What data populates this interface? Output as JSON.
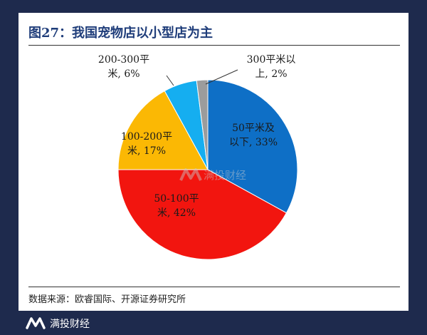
{
  "figure": {
    "title": "图27：我国宠物店以小型店为主",
    "source": "数据来源：欧睿国际、开源证券研究所"
  },
  "watermark": {
    "logo_icon": "manto-m-icon",
    "text": "满投财经"
  },
  "footer": {
    "logo_icon": "manto-m-icon",
    "brand": "满投财经"
  },
  "chart_data": {
    "type": "pie",
    "start": "12 o'clock",
    "direction": "clockwise",
    "slices": [
      {
        "label_lines": [
          "50平米及",
          "以下, 33%"
        ],
        "value": 33,
        "color": "#0e6fc6"
      },
      {
        "label_lines": [
          "50-100平",
          "米, 42%"
        ],
        "value": 42,
        "color": "#f2150f"
      },
      {
        "label_lines": [
          "100-200平",
          "米, 17%"
        ],
        "value": 17,
        "color": "#fbb804"
      },
      {
        "label_lines": [
          "200-300平",
          "米, 6%"
        ],
        "value": 6,
        "color": "#15aef0"
      },
      {
        "label_lines": [
          "300平米以",
          "上, 2%"
        ],
        "value": 2,
        "color": "#9c9c9c"
      }
    ]
  }
}
